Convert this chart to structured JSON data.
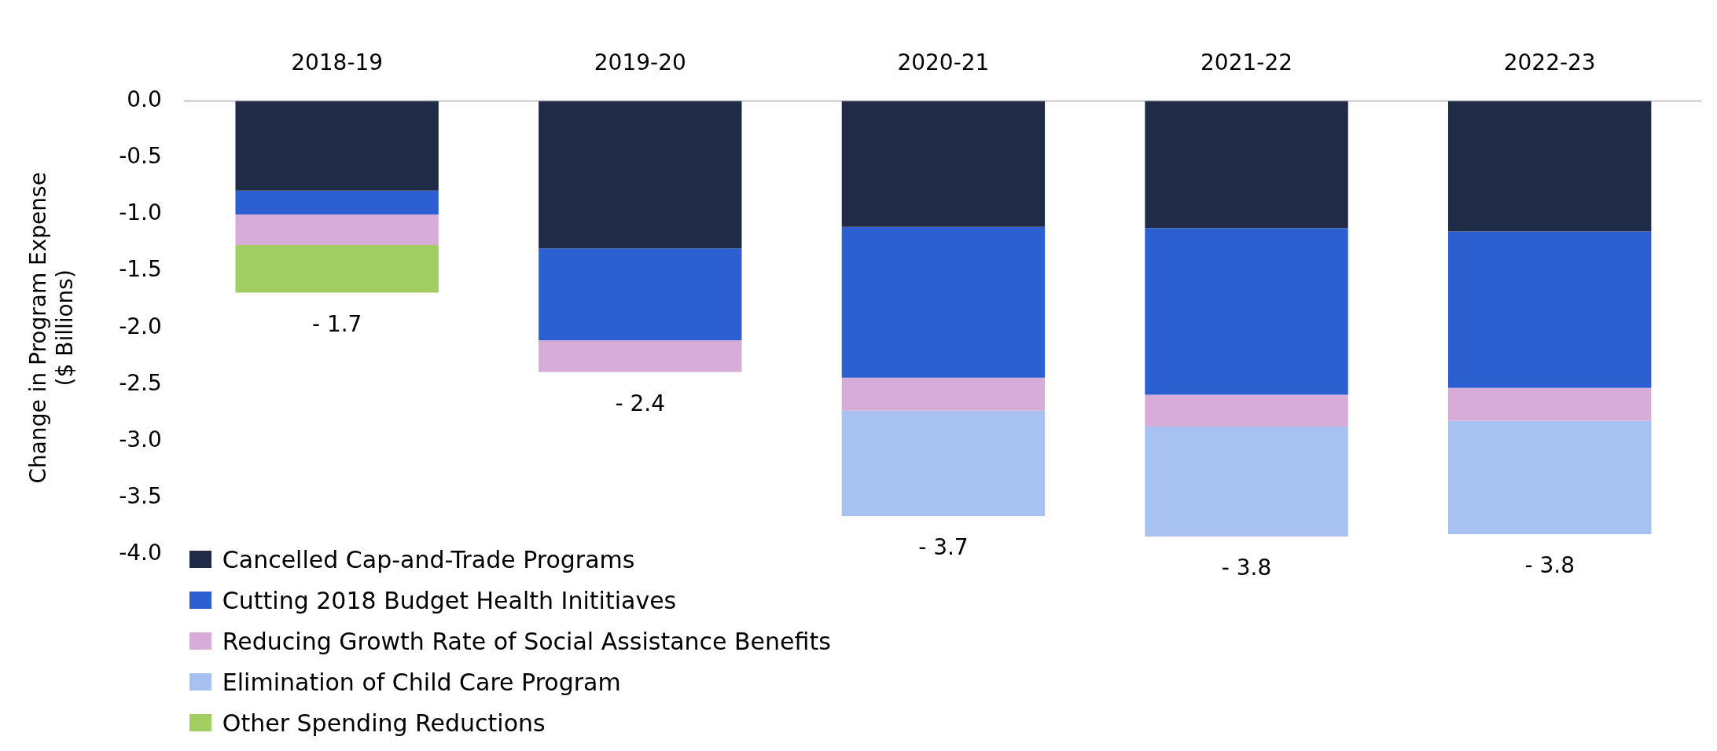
{
  "chart_data": {
    "type": "bar",
    "stacked": true,
    "ylabel": "Change in Program Expense\n($ Billions)",
    "categories": [
      "2018-19",
      "2019-20",
      "2020-21",
      "2021-22",
      "2022-23"
    ],
    "series": [
      {
        "name": "Cancelled Cap-and-Trade Programs",
        "color": "#1f2b47",
        "values": [
          -0.79,
          -1.3,
          -1.11,
          -1.12,
          -1.15
        ]
      },
      {
        "name": "Cutting 2018 Budget Health Inititiaves",
        "color": "#2c5fcf",
        "values": [
          -0.21,
          -0.81,
          -1.33,
          -1.47,
          -1.38
        ]
      },
      {
        "name": "Reducing Growth Rate of Social Assistance Benefits",
        "color": "#d8acd8",
        "values": [
          -0.27,
          -0.28,
          -0.29,
          -0.28,
          -0.29
        ]
      },
      {
        "name": "Elimination of Child Care Program",
        "color": "#a7c1f0",
        "values": [
          null,
          null,
          -0.93,
          -0.97,
          -1.0
        ]
      },
      {
        "name": "Other Spending Reductions",
        "color": "#a2cd63",
        "values": [
          -0.42,
          null,
          null,
          null,
          null
        ]
      }
    ],
    "totals": [
      "- 1.7",
      "- 2.4",
      "- 3.7",
      "- 3.8",
      "- 3.8"
    ],
    "ylim": [
      -4,
      0
    ],
    "yticks": [
      {
        "value": 0,
        "label": "0.0"
      },
      {
        "value": -0.5,
        "label": "-0.5"
      },
      {
        "value": -1,
        "label": "-1.0"
      },
      {
        "value": -1.5,
        "label": "-1.5"
      },
      {
        "value": -2,
        "label": "-2.0"
      },
      {
        "value": -2.5,
        "label": "-2.5"
      },
      {
        "value": -3,
        "label": "-3.0"
      },
      {
        "value": -3.5,
        "label": "-3.5"
      },
      {
        "value": -4,
        "label": "-4.0"
      }
    ],
    "grid": false,
    "legend": "bottom left"
  }
}
